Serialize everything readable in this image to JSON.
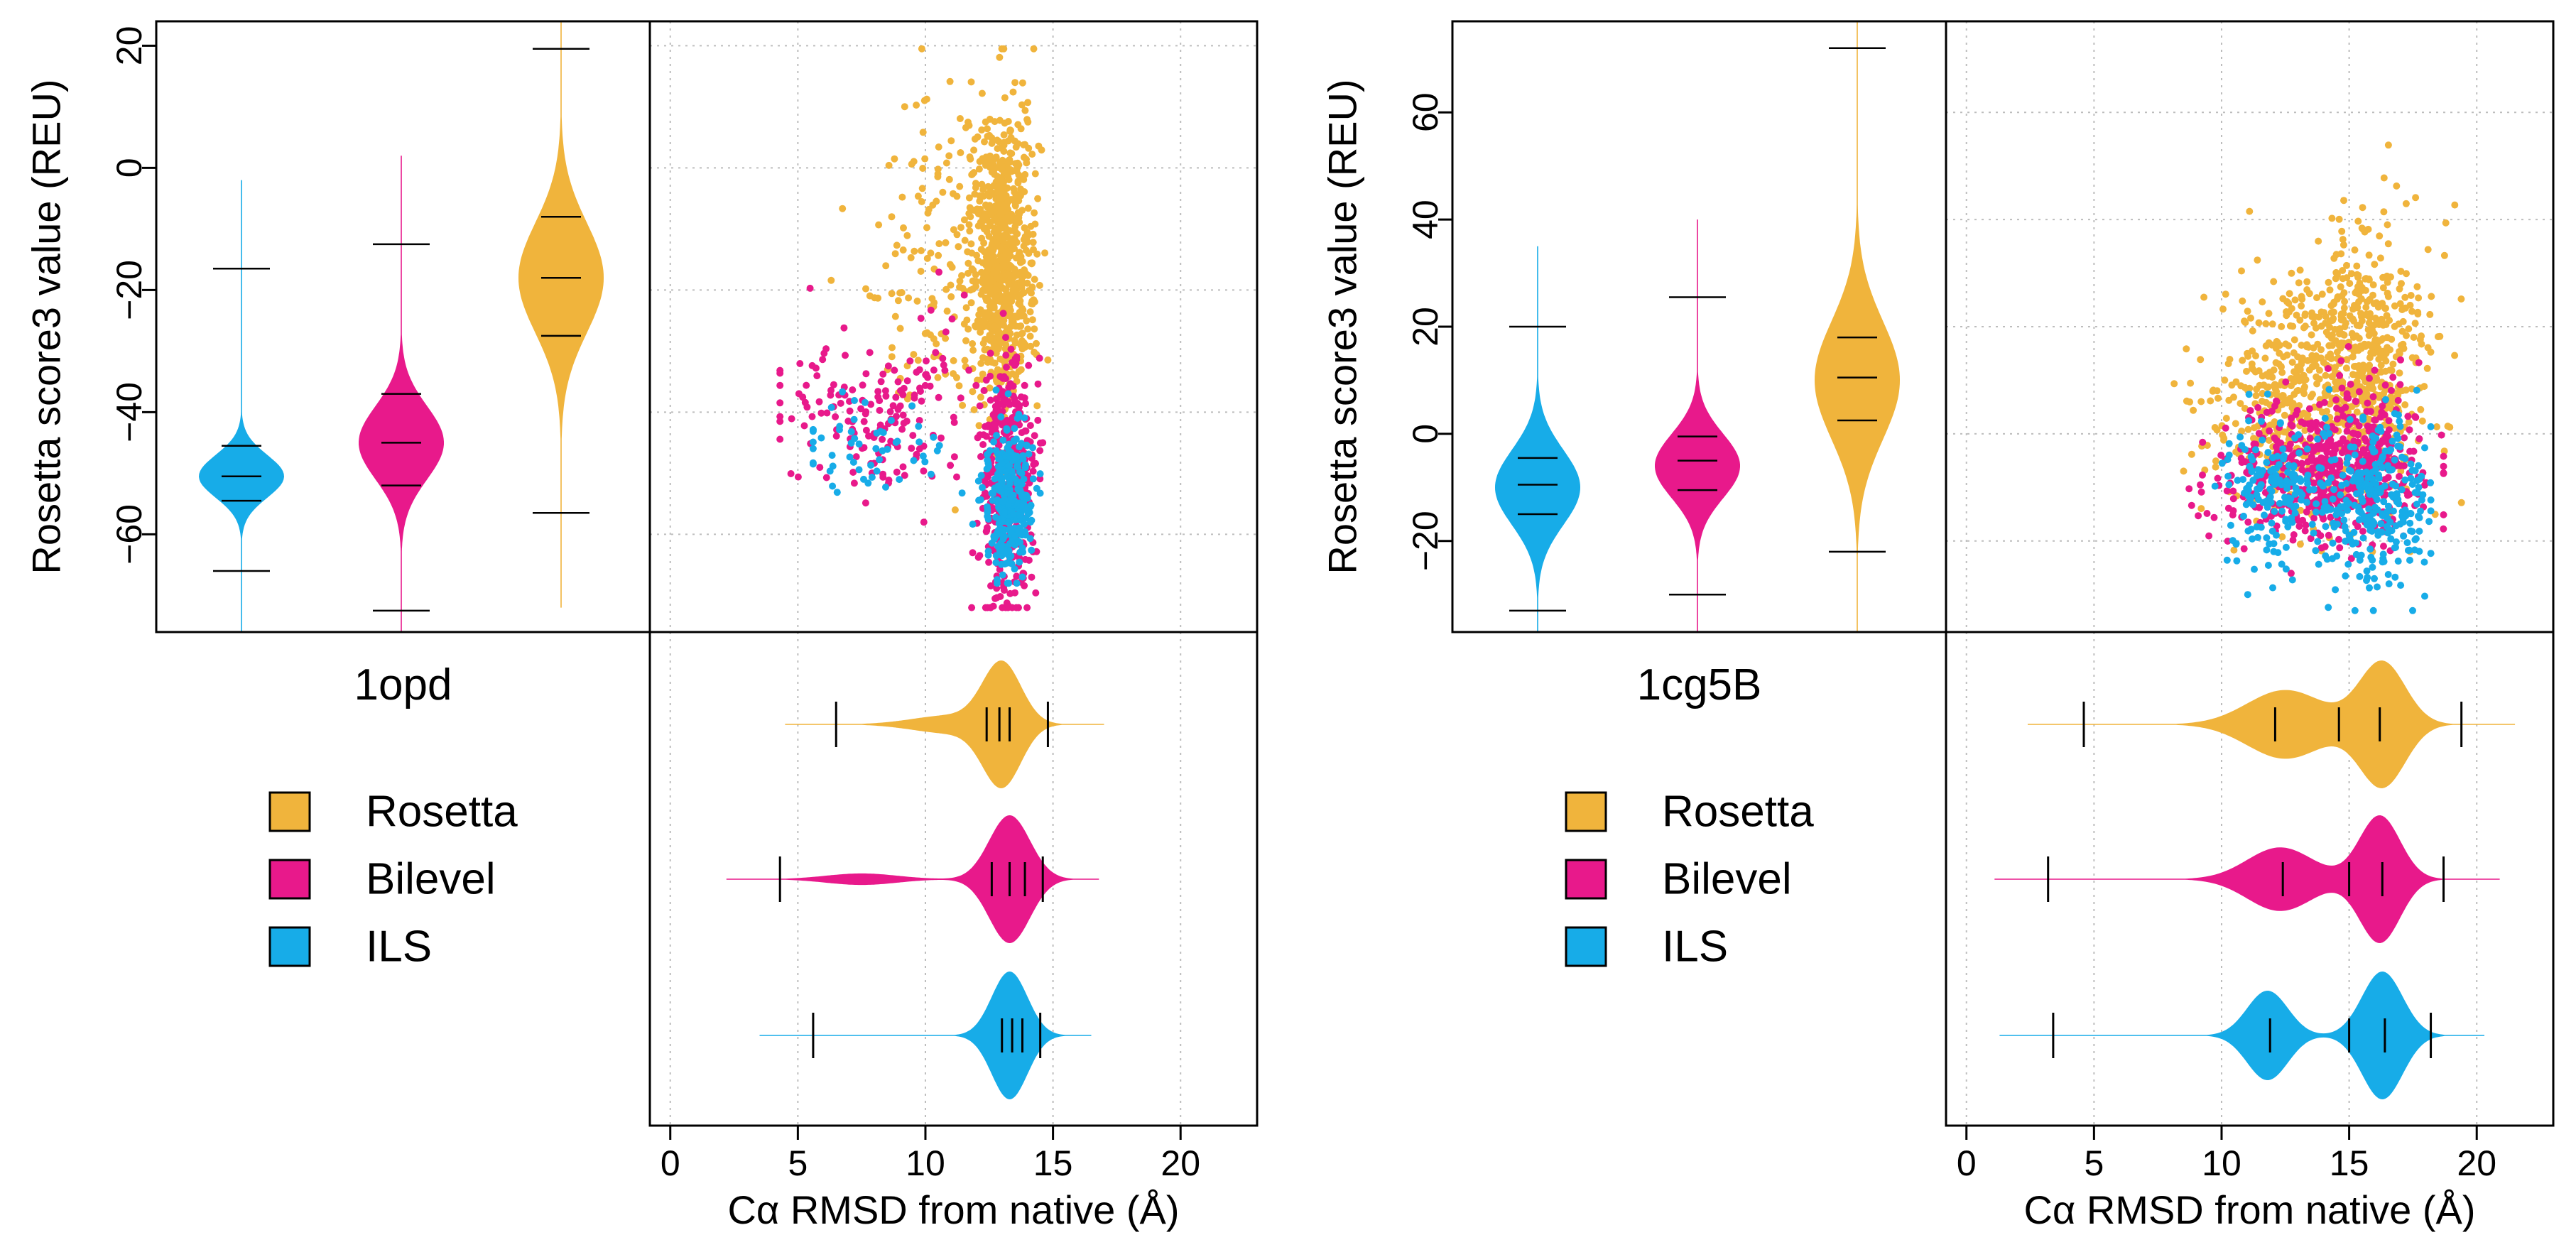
{
  "colors": {
    "Rosetta": "#F0B43C",
    "Bilevel": "#E8198B",
    "ILS": "#17ACE8",
    "frame": "#000000",
    "grid": "#BDBDBD"
  },
  "series_order": [
    "ILS",
    "Bilevel",
    "Rosetta"
  ],
  "legend": {
    "entries": [
      "Rosetta",
      "Bilevel",
      "ILS"
    ]
  },
  "chart_data": [
    {
      "type": "violin+scatter",
      "panel_label": "1opd",
      "ylabel": "Rosetta score3 value (REU)",
      "xlabel": "Cα RMSD from native (Å)",
      "ylim": [
        -76,
        24
      ],
      "yticks": [
        -60,
        -40,
        -20,
        0,
        20
      ],
      "ytick_labels": [
        "−60",
        "−40",
        "−20",
        "0",
        "20"
      ],
      "xlim": [
        -0.8,
        23
      ],
      "xticks": [
        0,
        5,
        10,
        15,
        20
      ],
      "xtick_labels": [
        "0",
        "5",
        "10",
        "15",
        "20"
      ],
      "score_violins": {
        "ILS": {
          "components": [
            {
              "m": -50.5,
              "s": 3.5,
              "w": 1
            }
          ],
          "lo": -76,
          "hi": -2,
          "box": [
            -54.5,
            -50.5,
            -45.5
          ],
          "whisk": [
            -66,
            -16.5
          ]
        },
        "Bilevel": {
          "components": [
            {
              "m": -45,
              "s": 6,
              "w": 1
            }
          ],
          "lo": -76,
          "hi": 2,
          "box": [
            -52,
            -45,
            -37
          ],
          "whisk": [
            -72.5,
            -12.5
          ]
        },
        "Rosetta": {
          "components": [
            {
              "m": -18,
              "s": 9,
              "w": 1
            }
          ],
          "lo": -72,
          "hi": 24,
          "box": [
            -27.5,
            -18,
            -8
          ],
          "whisk": [
            -56.5,
            19.5
          ]
        }
      },
      "rmsd_violins": {
        "Rosetta": {
          "components": [
            {
              "m": 13,
              "s": 0.75,
              "w": 1
            },
            {
              "m": 11,
              "s": 1.5,
              "w": 0.15
            }
          ],
          "lo": 4.5,
          "hi": 17,
          "box": [
            12.4,
            12.9,
            13.3
          ],
          "whisk": [
            6.5,
            14.8
          ]
        },
        "Bilevel": {
          "components": [
            {
              "m": 13.3,
              "s": 0.8,
              "w": 1
            },
            {
              "m": 7.5,
              "s": 1.4,
              "w": 0.09
            }
          ],
          "lo": 2.2,
          "hi": 16.8,
          "box": [
            12.6,
            13.3,
            13.9
          ],
          "whisk": [
            4.3,
            14.6
          ]
        },
        "ILS": {
          "components": [
            {
              "m": 13.3,
              "s": 0.7,
              "w": 1
            }
          ],
          "lo": 3.5,
          "hi": 16.5,
          "box": [
            13.0,
            13.4,
            13.8
          ],
          "whisk": [
            5.6,
            14.5
          ]
        }
      },
      "scatter": {
        "Rosetta": {
          "n": 900,
          "seed": 11,
          "clusters": [
            {
              "w": 0.82,
              "x": 13,
              "sx": 0.6,
              "y": -15,
              "sy": 12
            },
            {
              "w": 0.18,
              "x": 10.5,
              "sx": 1.6,
              "y": -12,
              "sy": 14
            }
          ],
          "xlim": [
            6,
            14.8
          ],
          "ylim": [
            -56,
            19.5
          ]
        },
        "Bilevel": {
          "n": 600,
          "seed": 23,
          "clusters": [
            {
              "w": 0.72,
              "x": 13.2,
              "sx": 0.5,
              "y": -52,
              "sy": 10
            },
            {
              "w": 0.28,
              "x": 8,
              "sx": 2,
              "y": -40,
              "sy": 7
            }
          ],
          "xlim": [
            4.3,
            14.6
          ],
          "ylim": [
            -72,
            -12
          ]
        },
        "ILS": {
          "n": 350,
          "seed": 37,
          "clusters": [
            {
              "w": 0.85,
              "x": 13.3,
              "sx": 0.45,
              "y": -55,
              "sy": 6
            },
            {
              "w": 0.15,
              "x": 8,
              "sx": 1.5,
              "y": -46,
              "sy": 4
            }
          ],
          "xlim": [
            5.6,
            14.5
          ],
          "ylim": [
            -68,
            -20
          ]
        }
      }
    },
    {
      "type": "violin+scatter",
      "panel_label": "1cg5B",
      "ylabel": "Rosetta score3 value (REU)",
      "xlabel": "Cα RMSD from native (Å)",
      "ylim": [
        -37,
        77
      ],
      "yticks": [
        -20,
        0,
        20,
        40,
        60
      ],
      "ytick_labels": [
        "−20",
        "0",
        "20",
        "40",
        "60"
      ],
      "xlim": [
        -0.8,
        23
      ],
      "xticks": [
        0,
        5,
        10,
        15,
        20
      ],
      "xtick_labels": [
        "0",
        "5",
        "10",
        "15",
        "20"
      ],
      "score_violins": {
        "ILS": {
          "components": [
            {
              "m": -10,
              "s": 7,
              "w": 1
            }
          ],
          "lo": -37,
          "hi": 35,
          "box": [
            -15,
            -9.5,
            -4.5
          ],
          "whisk": [
            -33,
            20
          ]
        },
        "Bilevel": {
          "components": [
            {
              "m": -6,
              "s": 6,
              "w": 1
            }
          ],
          "lo": -37,
          "hi": 40,
          "box": [
            -10.5,
            -5,
            -0.5
          ],
          "whisk": [
            -30,
            25.5
          ]
        },
        "Rosetta": {
          "components": [
            {
              "m": 10,
              "s": 11,
              "w": 1
            }
          ],
          "lo": -37,
          "hi": 77,
          "box": [
            2.5,
            10.5,
            18
          ],
          "whisk": [
            -22,
            72
          ]
        }
      },
      "rmsd_violins": {
        "Rosetta": {
          "components": [
            {
              "m": 16.3,
              "s": 0.9,
              "w": 1
            },
            {
              "m": 12.5,
              "s": 1.5,
              "w": 0.55
            }
          ],
          "lo": 2.4,
          "hi": 21.5,
          "box": [
            12.1,
            14.6,
            16.2
          ],
          "whisk": [
            4.6,
            19.4
          ]
        },
        "Bilevel": {
          "components": [
            {
              "m": 16.2,
              "s": 0.8,
              "w": 1
            },
            {
              "m": 12.3,
              "s": 1.3,
              "w": 0.5
            }
          ],
          "lo": 1.1,
          "hi": 20.9,
          "box": [
            12.4,
            15,
            16.3
          ],
          "whisk": [
            3.2,
            18.7
          ]
        },
        "ILS": {
          "components": [
            {
              "m": 16.3,
              "s": 0.8,
              "w": 1
            },
            {
              "m": 11.8,
              "s": 0.8,
              "w": 0.7
            }
          ],
          "lo": 1.3,
          "hi": 20.3,
          "box": [
            11.9,
            15,
            16.4
          ],
          "whisk": [
            3.4,
            18.2
          ]
        }
      },
      "scatter": {
        "Rosetta": {
          "n": 900,
          "seed": 53,
          "clusters": [
            {
              "w": 0.55,
              "x": 15.5,
              "sx": 1.4,
              "y": 15,
              "sy": 12
            },
            {
              "w": 0.45,
              "x": 13,
              "sx": 1.8,
              "y": 5,
              "sy": 10
            }
          ],
          "xlim": [
            4.6,
            19.4
          ],
          "ylim": [
            -22,
            72
          ]
        },
        "Bilevel": {
          "n": 600,
          "seed": 67,
          "clusters": [
            {
              "w": 0.55,
              "x": 15.5,
              "sx": 1.3,
              "y": -6,
              "sy": 7
            },
            {
              "w": 0.45,
              "x": 12.5,
              "sx": 1.4,
              "y": -8,
              "sy": 7
            }
          ],
          "xlim": [
            3.2,
            18.7
          ],
          "ylim": [
            -30,
            25
          ]
        },
        "ILS": {
          "n": 450,
          "seed": 79,
          "clusters": [
            {
              "w": 0.55,
              "x": 16,
              "sx": 1.2,
              "y": -13,
              "sy": 8
            },
            {
              "w": 0.45,
              "x": 12,
              "sx": 1.0,
              "y": -12,
              "sy": 7
            }
          ],
          "xlim": [
            3.4,
            18.2
          ],
          "ylim": [
            -33,
            20
          ]
        }
      }
    }
  ]
}
